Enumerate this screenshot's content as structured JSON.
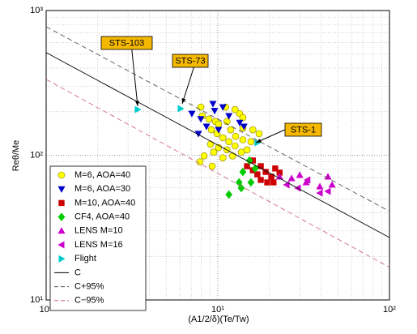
{
  "chart_data": {
    "type": "scatter",
    "xlabel": "(A1/2/δ)(Te/Tw)",
    "ylabel": "Reθ/Me",
    "log_x": true,
    "log_y": true,
    "grid": true,
    "xlim": [
      1,
      100
    ],
    "ylim": [
      10,
      1000
    ],
    "xticks": [
      {
        "value": 1,
        "label": "10⁰"
      },
      {
        "value": 10,
        "label": "10¹"
      },
      {
        "value": 100,
        "label": "10²"
      }
    ],
    "yticks": [
      {
        "value": 10,
        "label": "10¹"
      },
      {
        "value": 100,
        "label": "10²"
      },
      {
        "value": 1000,
        "label": "10³"
      }
    ],
    "xminor_ticks": [
      2,
      3,
      4,
      5,
      6,
      7,
      8,
      9,
      20,
      30,
      40,
      50,
      60,
      70,
      80,
      90
    ],
    "yminor_ticks": [
      20,
      30,
      40,
      50,
      60,
      70,
      80,
      90,
      200,
      300,
      400,
      500,
      600,
      700,
      800,
      900
    ],
    "legend": "lower left",
    "series": [
      {
        "name": "M=6, AOA=40",
        "marker": "o",
        "color": "#ffff00",
        "x": [
          7.96,
          8.13,
          8.87,
          9.68,
          10.1,
          11.1,
          12.6,
          13.4,
          14.0,
          9.17,
          9.89,
          10.7,
          11.6,
          12.7,
          14.0,
          15.6,
          9.07,
          10.1,
          11.3,
          12.6,
          14.8,
          7.87,
          9.27,
          10.7,
          12.2,
          13.7,
          16.0,
          17.4,
          11.3,
          14.0,
          11.9,
          9.47,
          8.32
        ],
        "values": [
          215,
          187,
          178,
          171,
          164,
          215,
          207,
          194,
          182,
          150,
          141,
          132,
          124,
          135,
          128,
          124,
          119,
          113,
          109,
          116,
          109,
          90,
          84,
          96,
          99,
          105,
          150,
          141,
          171,
          154,
          150,
          105,
          99
        ]
      },
      {
        "name": "M=6, AOA=30",
        "marker": "v",
        "color": "#0000cc",
        "x": [
          7.06,
          7.96,
          8.59,
          9.37,
          9.58,
          10.7,
          11.6,
          13.4,
          14.2,
          10.1,
          7.71
        ],
        "values": [
          194,
          178,
          158,
          227,
          203,
          215,
          187,
          168,
          158,
          150,
          141
        ]
      },
      {
        "name": "M=10, AOA=40",
        "marker": "s",
        "color": "#cc0000",
        "x": [
          14.8,
          16.0,
          17.0,
          17.8,
          19.0,
          20.5,
          21.6,
          22.9,
          19.4,
          17.8,
          21.1,
          16.0
        ],
        "values": [
          84,
          78.7,
          73.8,
          84,
          76.7,
          71.1,
          81,
          75.8,
          64.9,
          67.5,
          64.9,
          92
        ]
      },
      {
        "name": "CF4, AOA=40",
        "marker": "d",
        "color": "#00cc00",
        "x": [
          15.3,
          16.5,
          14.0,
          15.6,
          13.3,
          11.6,
          13.7
        ],
        "values": [
          92,
          81,
          76.7,
          64.9,
          64.9,
          53.5,
          59.3
        ]
      },
      {
        "name": "LENS M=10",
        "marker": "^",
        "color": "#cc00cc",
        "x": [
          22.9,
          26.9,
          30.0,
          32.7,
          39.3,
          43.8,
          46.3
        ],
        "values": [
          71.1,
          69.2,
          72.9,
          64.9,
          60.8,
          71.1,
          62.5
        ]
      },
      {
        "name": "LENS M=16",
        "marker": "<",
        "color": "#cc00cc",
        "x": [
          25.2,
          29.3,
          33.3,
          39.3,
          43.8
        ],
        "values": [
          62.5,
          59.3,
          67.5,
          54.8,
          56.3
        ]
      },
      {
        "name": "Flight",
        "marker": ">",
        "color": "#00cccc",
        "x": [
          3.41,
          6.07,
          17.0
        ],
        "values": [
          207,
          210,
          122
        ]
      },
      {
        "name": "C",
        "linestyle": "solid",
        "color": "#000000",
        "x": [
          1,
          100
        ],
        "values": [
          512,
          27
        ]
      },
      {
        "name": "C+95%",
        "linestyle": "dashed",
        "color": "#555555",
        "x": [
          1,
          100
        ],
        "values": [
          773,
          41
        ]
      },
      {
        "name": "C−95%",
        "linestyle": "dashed",
        "color": "#d06a80",
        "x": [
          1,
          100
        ],
        "values": [
          334,
          16.8
        ]
      }
    ],
    "annotations": [
      {
        "text": "STS-103"
      },
      {
        "text": "STS-73"
      },
      {
        "text": "STS-1"
      }
    ]
  }
}
